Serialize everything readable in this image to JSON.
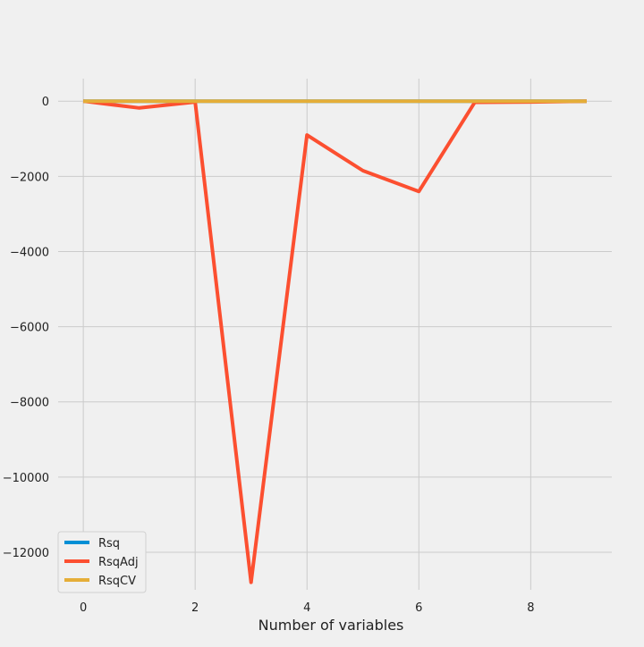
{
  "chart_data": {
    "type": "line",
    "title": "",
    "xlabel": "Number of variables",
    "ylabel": "",
    "x": [
      0,
      1,
      2,
      3,
      4,
      5,
      6,
      7,
      8,
      9
    ],
    "xlim": [
      -0.45,
      9.45
    ],
    "ylim": [
      -13000,
      600
    ],
    "xticks": [
      0,
      2,
      4,
      6,
      8
    ],
    "yticks": [
      0,
      -2000,
      -4000,
      -6000,
      -8000,
      -10000,
      -12000
    ],
    "xtick_labels": [
      "0",
      "2",
      "4",
      "6",
      "8"
    ],
    "ytick_labels": [
      "0",
      "−2000",
      "−4000",
      "−6000",
      "−8000",
      "−10000",
      "−12000"
    ],
    "grid": true,
    "legend_position": "lower-left",
    "series": [
      {
        "name": "Rsq",
        "color": "#008fd5",
        "values": [
          0,
          0,
          0,
          0,
          0,
          0,
          0,
          0,
          0,
          0
        ]
      },
      {
        "name": "RsqAdj",
        "color": "#fc4f30",
        "values": [
          0,
          -180,
          -20,
          -12800,
          -900,
          -1850,
          -2400,
          -30,
          -20,
          0
        ]
      },
      {
        "name": "RsqCV",
        "color": "#e5ae38",
        "values": [
          0,
          0,
          0,
          0,
          0,
          0,
          0,
          0,
          0,
          0
        ]
      }
    ]
  }
}
